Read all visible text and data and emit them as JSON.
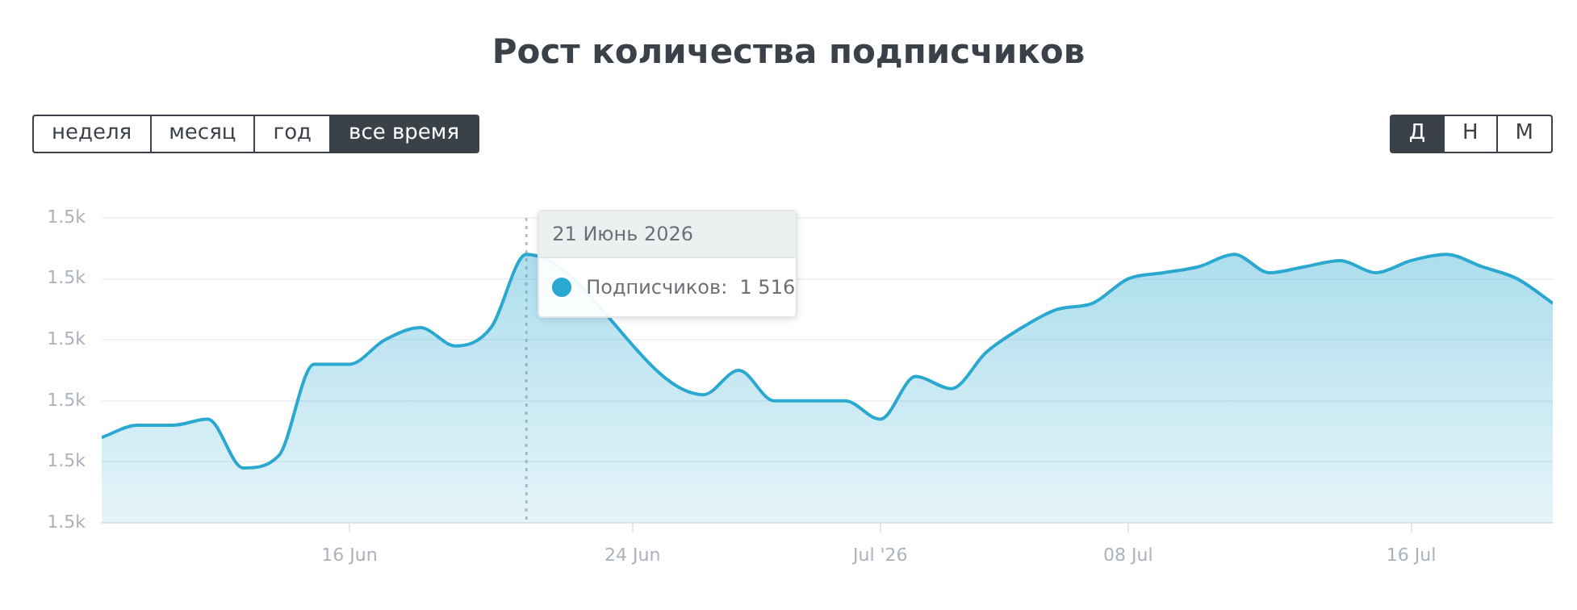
{
  "chart_data": {
    "type": "area",
    "title": "Рост количества подписчиков",
    "x": [
      "2026-06-09",
      "2026-06-10",
      "2026-06-11",
      "2026-06-12",
      "2026-06-13",
      "2026-06-14",
      "2026-06-15",
      "2026-06-16",
      "2026-06-17",
      "2026-06-18",
      "2026-06-19",
      "2026-06-20",
      "2026-06-21",
      "2026-06-22",
      "2026-06-23",
      "2026-06-24",
      "2026-06-25",
      "2026-06-26",
      "2026-06-27",
      "2026-06-28",
      "2026-06-29",
      "2026-06-30",
      "2026-07-01",
      "2026-07-02",
      "2026-07-03",
      "2026-07-04",
      "2026-07-05",
      "2026-07-06",
      "2026-07-07",
      "2026-07-08",
      "2026-07-09",
      "2026-07-10",
      "2026-07-11",
      "2026-07-12",
      "2026-07-13",
      "2026-07-14",
      "2026-07-15",
      "2026-07-16",
      "2026-07-17",
      "2026-07-18",
      "2026-07-19",
      "2026-07-20"
    ],
    "series": [
      {
        "color": "#2aa8d0",
        "values": [
          1501,
          1502,
          1502,
          1502.5,
          1498.5,
          1499.5,
          1507,
          1507,
          1509,
          1510,
          1508.5,
          1510,
          1516,
          null,
          null,
          null,
          null,
          1504.5,
          1506.5,
          1504,
          1504,
          1504,
          1502.5,
          1506,
          1505,
          1508,
          1510,
          1511.5,
          1512,
          1514,
          1514.5,
          1515,
          1516,
          1514.5,
          1515,
          1515.5,
          1514.5,
          1515.5,
          1516,
          1515,
          1514,
          1512
        ]
      }
    ],
    "xlim": [
      "2026-06-09",
      "2026-07-20"
    ],
    "xticks": [
      {
        "value": "2026-06-16",
        "label": "16 Jun"
      },
      {
        "value": "2026-06-24",
        "label": "24 Jun"
      },
      {
        "value": "2026-07-01",
        "label": "Jul '26"
      },
      {
        "value": "2026-07-08",
        "label": "08 Jul"
      },
      {
        "value": "2026-07-16",
        "label": "16 Jul"
      }
    ],
    "ylim": [
      1494,
      1519
    ],
    "yticks": [
      {
        "value": 1494,
        "label": "1.5k"
      },
      {
        "value": 1499,
        "label": "1.5k"
      },
      {
        "value": 1504,
        "label": "1.5k"
      },
      {
        "value": 1509,
        "label": "1.5k"
      },
      {
        "value": 1514,
        "label": "1.5k"
      },
      {
        "value": 1519,
        "label": "1.5k"
      }
    ],
    "ref_lines": [
      {
        "axis": "x",
        "value": "2026-06-21",
        "color": "#b8c0c6",
        "line_style": "dotted"
      }
    ],
    "grid": "y",
    "legend": false,
    "marker": "none",
    "line_style": "solid",
    "annotations": [
      "неделя",
      "месяц",
      "год",
      "все время",
      "Д",
      "Н",
      "М",
      {
        "text": "21 Июнь 2026",
        "x": "2026-06-21",
        "y": 1516
      },
      {
        "text": "Подписчиков:  1 516",
        "x": "2026-06-21",
        "y": 1516
      }
    ]
  }
}
